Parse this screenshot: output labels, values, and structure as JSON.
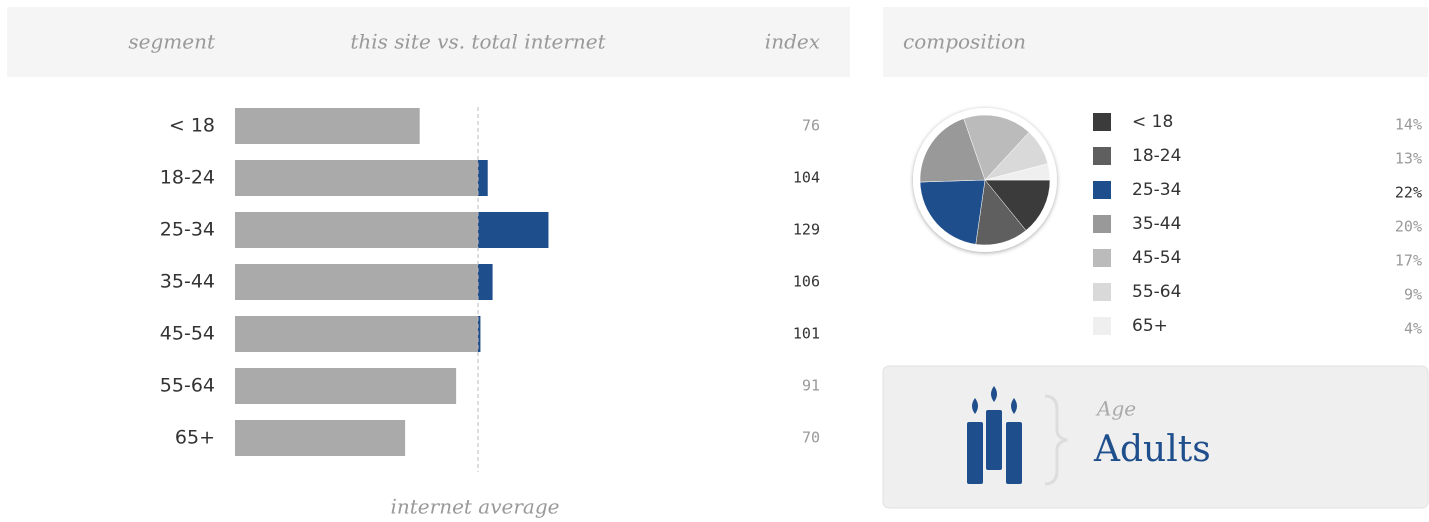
{
  "chart_data": [
    {
      "type": "bar",
      "columns": [
        "segment",
        "this site vs. total internet",
        "index"
      ],
      "categories": [
        "< 18",
        "18-24",
        "25-34",
        "35-44",
        "45-54",
        "55-64",
        "65+"
      ],
      "values": [
        76,
        104,
        129,
        106,
        101,
        91,
        70
      ],
      "xlim": [
        0,
        200
      ],
      "average": 100,
      "average_label": "internet average",
      "color": "#aaaaaa",
      "highlight_color": "#1f4e8c"
    },
    {
      "type": "pie",
      "title": "composition",
      "categories": [
        "< 18",
        "18-24",
        "25-34",
        "35-44",
        "45-54",
        "55-64",
        "65+"
      ],
      "values": [
        14,
        13,
        22,
        20,
        17,
        9,
        4
      ],
      "value_labels": [
        "14%",
        "13%",
        "22%",
        "20%",
        "17%",
        "9%",
        "4%"
      ],
      "colors": [
        "#3b3b3b",
        "#5f5f5f",
        "#1f4e8c",
        "#999999",
        "#bbbbbb",
        "#d9d9d9",
        "#efefef"
      ]
    }
  ],
  "card": {
    "label": "Age",
    "value": "Adults"
  }
}
